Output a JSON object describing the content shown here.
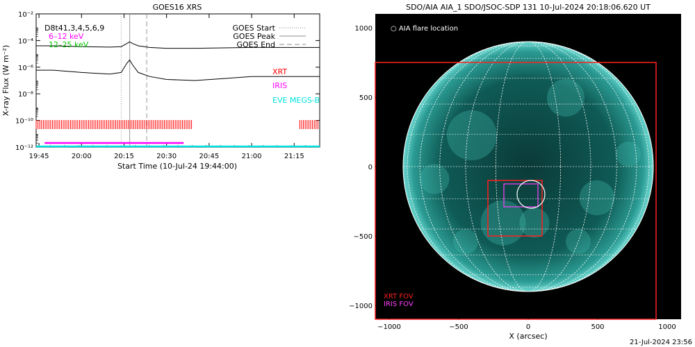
{
  "left_chart": {
    "title": "GOES16 XRS",
    "ylabel": "X-ray Flux (W m⁻²)",
    "xlabel": "Start Time (10-Jul-24 19:44:00)",
    "y_ticks": [
      "10⁻²",
      "10⁻⁴",
      "10⁻⁶",
      "10⁻⁸",
      "10⁻¹⁰",
      "10⁻¹²"
    ],
    "x_ticks": [
      "19:45",
      "20:00",
      "20:15",
      "20:30",
      "20:45",
      "21:00",
      "21:15"
    ],
    "legend_top_left": [
      {
        "text": "D8t41,3,4,5,6,9",
        "color": "#000000"
      },
      {
        "text": "6–12 keV",
        "color": "#ff00ff"
      },
      {
        "text": "12–25 keV",
        "color": "#00c000"
      }
    ],
    "legend_lines": [
      {
        "text": "GOES Start",
        "style": "dotted"
      },
      {
        "text": "GOES Peak",
        "style": "solid"
      },
      {
        "text": "GOES End",
        "style": "dashed"
      }
    ],
    "instrument_labels": [
      {
        "text": "XRT",
        "color": "#ff0000"
      },
      {
        "text": "IRIS",
        "color": "#ff00ff"
      },
      {
        "text": "EVE MEGS-B",
        "color": "#00e0e0"
      }
    ]
  },
  "right_chart": {
    "title": "SDO/AIA AIA_1 SDO/JSOC-SDP 131 10-Jul-2024 20:18:06.620 UT",
    "legend": "○ AIA flare location",
    "x_label": "X (arcsec)",
    "x_ticks": [
      "−1000",
      "−500",
      "0",
      "500",
      "1000"
    ],
    "y_ticks": [
      "1000",
      "500",
      "0",
      "−500",
      "−1000"
    ],
    "fov_labels": [
      {
        "text": "XRT FOV",
        "color": "#ff2020"
      },
      {
        "text": "IRIS FOV",
        "color": "#ff40ff"
      }
    ]
  },
  "footer_date": "21-Jul-2024 23:56",
  "chart_data": [
    {
      "type": "line",
      "title": "GOES16 XRS",
      "xlabel": "Start Time (10-Jul-24 19:44:00)",
      "ylabel": "X-ray Flux (W m⁻²)",
      "y_scale": "log",
      "ylim": [
        1e-12,
        0.01
      ],
      "x_range": [
        "19:44",
        "21:24"
      ],
      "series": [
        {
          "name": "",
          "color": "#000000",
          "x": [
            "19:44",
            "19:50",
            "20:00",
            "20:10",
            "20:14",
            "20:16",
            "20:17",
            "20:18",
            "20:20",
            "20:24",
            "20:30",
            "20:40",
            "20:50",
            "21:00",
            "21:10",
            "21:20",
            "21:24"
          ],
          "y": [
            4e-05,
            4e-05,
            3.5e-05,
            3.2e-05,
            3.5e-05,
            6e-05,
            8e-05,
            6e-05,
            4e-05,
            3e-05,
            2.6e-05,
            2.6e-05,
            2.8e-05,
            3e-05,
            3e-05,
            3e-05,
            3e-05
          ]
        },
        {
          "name": "",
          "color": "#000000",
          "x": [
            "19:44",
            "19:50",
            "20:00",
            "20:10",
            "20:14",
            "20:16",
            "20:17",
            "20:18",
            "20:20",
            "20:24",
            "20:30",
            "20:40",
            "20:50",
            "21:00",
            "21:10",
            "21:20",
            "21:24"
          ],
          "y": [
            6e-07,
            6e-07,
            4e-07,
            3e-07,
            4e-07,
            2e-06,
            3.5e-06,
            1.5e-06,
            4e-07,
            2e-07,
            1.2e-07,
            1e-07,
            1.4e-07,
            2e-07,
            2e-07,
            2e-07,
            2e-07
          ]
        }
      ],
      "goes_lines": {
        "start": "20:14",
        "peak": "20:17",
        "end": "20:23"
      },
      "xrt_coverage": [
        [
          "19:44",
          "20:39"
        ],
        [
          "21:17",
          "21:24"
        ]
      ],
      "iris_coverage": [
        [
          "19:47",
          "20:36"
        ]
      ],
      "eve_coverage": [
        [
          "19:44",
          "21:24"
        ]
      ]
    },
    {
      "type": "heatmap",
      "title": "SDO/AIA AIA_1 SDO/JSOC-SDP 131 10-Jul-2024 20:18:06.620 UT",
      "xlabel": "X (arcsec)",
      "xlim": [
        -1100,
        1100
      ],
      "ylim": [
        -1100,
        1100
      ],
      "solar_radius_arcsec": 900,
      "flare_location": [
        20,
        -200
      ],
      "xrt_fov": [
        [
          -1100,
          -1100
        ],
        [
          920,
          750
        ]
      ],
      "xrt_fov_small": [
        [
          -290,
          -500
        ],
        [
          100,
          -100
        ]
      ],
      "iris_fov": [
        [
          -175,
          -290
        ],
        [
          70,
          -125
        ]
      ]
    }
  ]
}
